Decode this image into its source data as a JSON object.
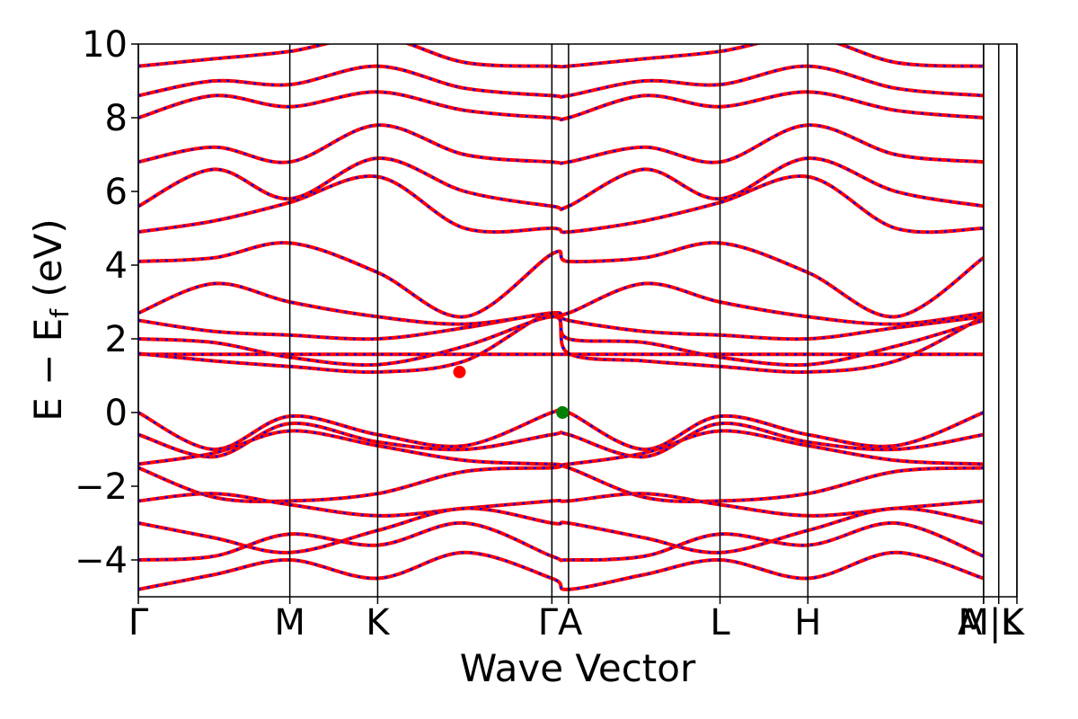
{
  "chart_data": {
    "type": "line",
    "ylabel": "E − E",
    "ylabel_subscript": "f",
    "ylabel_unit": "(eV)",
    "xlabel": "Wave Vector",
    "xlim": [
      0,
      5.8
    ],
    "ylim": [
      -5,
      10
    ],
    "yticks": [
      -4,
      -2,
      0,
      2,
      4,
      6,
      8,
      10
    ],
    "ytick_labels": [
      "−4",
      "−2",
      "0",
      "2",
      "4",
      "6",
      "8",
      "10"
    ],
    "kpoints": [
      {
        "label": "Γ",
        "x": 0.0
      },
      {
        "label": "M",
        "x": 1.0
      },
      {
        "label": "K",
        "x": 1.58
      },
      {
        "label": "Γ",
        "x": 2.73
      },
      {
        "label": "A",
        "x": 2.84
      },
      {
        "label": "L",
        "x": 3.84
      },
      {
        "label": "H",
        "x": 4.42
      },
      {
        "label": "A",
        "x": 5.58
      },
      {
        "label": "M",
        "x": 5.58
      },
      {
        "label": "L",
        "x": 5.68
      },
      {
        "label": "K",
        "x": 5.8
      }
    ],
    "xtick_labels": [
      {
        "text": "Γ",
        "x": 0.0
      },
      {
        "text": "M",
        "x": 1.0
      },
      {
        "text": "K",
        "x": 1.58
      },
      {
        "text": "ΓA",
        "x": 2.785
      },
      {
        "text": "L",
        "x": 3.84
      },
      {
        "text": "H",
        "x": 4.42
      },
      {
        "text": "A",
        "x": 5.49
      },
      {
        "text": "M|L",
        "x": 5.62
      },
      {
        "text": "K",
        "x": 5.77
      }
    ],
    "series_colors": {
      "spin_up": "#0000ff",
      "spin_down": "#ff0000"
    },
    "cbm_marker": {
      "x": 2.12,
      "y": 1.1,
      "color": "#ff0000"
    },
    "vbm_marker": {
      "x": 2.8,
      "y": 0.0,
      "color": "#008000"
    },
    "bands": [
      {
        "name": "flat",
        "y": [
          1.58,
          1.58,
          1.58,
          1.58,
          1.58,
          1.58,
          1.58,
          1.58,
          1.58,
          1.58,
          1.58,
          1.58
        ]
      },
      {
        "name": "cb1",
        "y": [
          1.6,
          1.4,
          1.25,
          1.1,
          1.4,
          2.7,
          1.6,
          1.4,
          1.25,
          1.1,
          1.4,
          2.6
        ]
      },
      {
        "name": "cb2",
        "y": [
          2.0,
          1.9,
          1.5,
          1.3,
          1.8,
          2.6,
          2.0,
          1.9,
          1.5,
          1.3,
          1.8,
          2.5
        ]
      },
      {
        "name": "cb3",
        "y": [
          2.5,
          2.2,
          2.1,
          2.0,
          2.3,
          2.7,
          2.5,
          2.2,
          2.1,
          2.0,
          2.3,
          2.6
        ]
      },
      {
        "name": "cb4",
        "y": [
          2.7,
          3.5,
          3.0,
          2.6,
          2.4,
          2.7,
          2.7,
          3.5,
          3.0,
          2.6,
          2.4,
          2.7
        ]
      },
      {
        "name": "cb5",
        "y": [
          4.1,
          4.2,
          4.6,
          3.8,
          2.6,
          4.3,
          4.1,
          4.2,
          4.6,
          3.8,
          2.6,
          4.2
        ]
      },
      {
        "name": "cb6",
        "y": [
          4.9,
          5.2,
          5.7,
          6.4,
          5.0,
          5.0,
          4.9,
          5.2,
          5.7,
          6.4,
          5.0,
          5.0
        ]
      },
      {
        "name": "cb7",
        "y": [
          5.6,
          6.6,
          5.8,
          6.9,
          6.0,
          5.6,
          5.6,
          6.6,
          5.8,
          6.9,
          6.0,
          5.6
        ]
      },
      {
        "name": "cb8",
        "y": [
          6.8,
          7.2,
          6.8,
          7.8,
          7.0,
          6.8,
          6.8,
          7.2,
          6.8,
          7.8,
          7.0,
          6.8
        ]
      },
      {
        "name": "cb9",
        "y": [
          8.0,
          8.6,
          8.3,
          8.7,
          8.2,
          8.0,
          8.0,
          8.6,
          8.3,
          8.7,
          8.2,
          8.0
        ]
      },
      {
        "name": "cb10",
        "y": [
          8.6,
          9.0,
          8.9,
          9.4,
          8.8,
          8.6,
          8.6,
          9.0,
          8.9,
          9.4,
          8.8,
          8.6
        ]
      },
      {
        "name": "cb11",
        "y": [
          9.4,
          9.6,
          9.8,
          10.2,
          9.5,
          9.4,
          9.4,
          9.6,
          9.8,
          10.2,
          9.5,
          9.4
        ]
      },
      {
        "name": "vb1",
        "y": [
          0.0,
          -1.0,
          -0.1,
          -0.6,
          -0.9,
          0.0,
          0.0,
          -1.0,
          -0.1,
          -0.6,
          -0.9,
          0.0
        ]
      },
      {
        "name": "vb2",
        "y": [
          -0.6,
          -1.2,
          -0.3,
          -0.8,
          -1.0,
          -0.6,
          -0.6,
          -1.2,
          -0.3,
          -0.8,
          -1.0,
          -0.6
        ]
      },
      {
        "name": "vb3",
        "y": [
          -1.4,
          -1.1,
          -0.5,
          -0.9,
          -1.3,
          -1.4,
          -1.4,
          -1.1,
          -0.5,
          -0.9,
          -1.3,
          -1.4
        ]
      },
      {
        "name": "vb4",
        "y": [
          -1.5,
          -2.3,
          -2.4,
          -2.2,
          -1.6,
          -1.5,
          -1.5,
          -2.3,
          -2.4,
          -2.2,
          -1.6,
          -1.5
        ]
      },
      {
        "name": "vb5",
        "y": [
          -2.4,
          -2.2,
          -2.5,
          -2.8,
          -2.6,
          -2.4,
          -2.4,
          -2.2,
          -2.5,
          -2.8,
          -2.6,
          -2.4
        ]
      },
      {
        "name": "vb6",
        "y": [
          -3.0,
          -3.4,
          -3.8,
          -3.2,
          -2.6,
          -3.0,
          -3.0,
          -3.4,
          -3.8,
          -3.2,
          -2.6,
          -3.0
        ]
      },
      {
        "name": "vb7",
        "y": [
          -4.0,
          -3.9,
          -3.3,
          -3.6,
          -3.0,
          -3.9,
          -4.0,
          -3.9,
          -3.3,
          -3.6,
          -3.0,
          -3.9
        ]
      },
      {
        "name": "vb8",
        "y": [
          -4.8,
          -4.4,
          -4.0,
          -4.5,
          -3.8,
          -4.5,
          -4.8,
          -4.4,
          -4.0,
          -4.5,
          -3.8,
          -4.5
        ]
      }
    ]
  }
}
